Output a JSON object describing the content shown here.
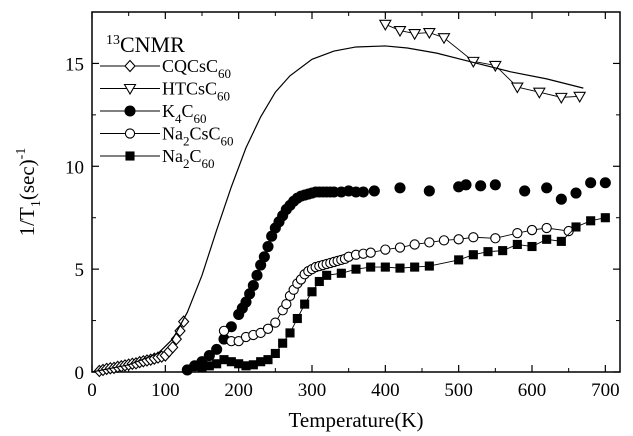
{
  "chart_data": {
    "type": "scatter",
    "title": "",
    "annotation": {
      "sup": "13",
      "main": "CNMR"
    },
    "xlabel": "Temperature(K)",
    "ylabel": {
      "main": "1/T",
      "sub": "1",
      "paren": "(sec)",
      "sup": "-1"
    },
    "xlim": [
      0,
      720
    ],
    "ylim": [
      0,
      17.5
    ],
    "xticks": [
      0,
      100,
      200,
      300,
      400,
      500,
      600,
      700
    ],
    "yticks": [
      0,
      5,
      10,
      15
    ],
    "grid": false,
    "legend_position": "top-left",
    "series": [
      {
        "name": "CQCsC60",
        "label_parts": [
          [
            "CQCsC",
            ""
          ],
          [
            "60",
            "sub"
          ]
        ],
        "marker": "diamond-open",
        "connect": true,
        "x": [
          10,
          15,
          20,
          25,
          30,
          35,
          40,
          45,
          50,
          55,
          60,
          65,
          70,
          75,
          80,
          85,
          90,
          95,
          100,
          105,
          110,
          115,
          120,
          125
        ],
        "y": [
          0.05,
          0.1,
          0.15,
          0.18,
          0.2,
          0.25,
          0.28,
          0.32,
          0.36,
          0.4,
          0.42,
          0.48,
          0.52,
          0.56,
          0.6,
          0.65,
          0.7,
          0.75,
          0.8,
          1.0,
          1.2,
          1.6,
          2.0,
          2.45
        ]
      },
      {
        "name": "HTCsC60",
        "label_parts": [
          [
            "HTCsC",
            ""
          ],
          [
            "60",
            "sub"
          ]
        ],
        "marker": "triangle-down-open",
        "connect": true,
        "x": [
          400,
          420,
          440,
          460,
          480,
          520,
          550,
          580,
          610,
          640,
          665
        ],
        "y": [
          16.9,
          16.6,
          16.45,
          16.5,
          16.25,
          15.1,
          14.9,
          13.85,
          13.6,
          13.35,
          13.4
        ]
      },
      {
        "name": "K4C60",
        "label_parts": [
          [
            "K",
            ""
          ],
          [
            "4",
            "sub"
          ],
          [
            "C",
            ""
          ],
          [
            "60",
            "sub"
          ]
        ],
        "marker": "circle-filled",
        "connect": false,
        "x": [
          130,
          140,
          150,
          160,
          170,
          180,
          190,
          200,
          205,
          210,
          215,
          220,
          225,
          230,
          235,
          240,
          245,
          250,
          255,
          260,
          265,
          270,
          275,
          280,
          285,
          290,
          295,
          300,
          305,
          310,
          315,
          320,
          325,
          330,
          340,
          350,
          360,
          370,
          385,
          420,
          460,
          500,
          510,
          530,
          550,
          590,
          620,
          640,
          660,
          680,
          700
        ],
        "y": [
          0.1,
          0.3,
          0.5,
          0.8,
          1.1,
          1.6,
          2.2,
          2.8,
          3.1,
          3.4,
          3.8,
          4.2,
          4.7,
          5.2,
          5.6,
          6.1,
          6.6,
          7.0,
          7.3,
          7.6,
          7.9,
          8.1,
          8.3,
          8.45,
          8.55,
          8.6,
          8.65,
          8.7,
          8.75,
          8.75,
          8.75,
          8.75,
          8.75,
          8.75,
          8.75,
          8.8,
          8.75,
          8.75,
          8.8,
          8.95,
          8.8,
          9.0,
          9.1,
          9.05,
          9.1,
          8.8,
          8.95,
          8.4,
          8.7,
          9.2,
          9.2
        ]
      },
      {
        "name": "Na2CsC60",
        "label_parts": [
          [
            "Na",
            ""
          ],
          [
            "2",
            "sub"
          ],
          [
            "CsC",
            ""
          ],
          [
            "60",
            "sub"
          ]
        ],
        "marker": "circle-open",
        "connect": true,
        "x": [
          180,
          190,
          200,
          210,
          220,
          230,
          240,
          250,
          260,
          265,
          270,
          275,
          280,
          285,
          290,
          295,
          300,
          305,
          310,
          315,
          320,
          325,
          330,
          335,
          340,
          345,
          350,
          360,
          370,
          380,
          400,
          420,
          440,
          460,
          480,
          500,
          520,
          550,
          580,
          600,
          620,
          650
        ],
        "y": [
          2.0,
          1.5,
          1.5,
          1.7,
          1.8,
          1.9,
          2.1,
          2.4,
          3.0,
          3.3,
          3.7,
          4.0,
          4.3,
          4.5,
          4.75,
          4.9,
          5.0,
          5.1,
          5.15,
          5.2,
          5.25,
          5.3,
          5.35,
          5.4,
          5.45,
          5.5,
          5.6,
          5.7,
          5.75,
          5.8,
          5.95,
          6.05,
          6.2,
          6.3,
          6.4,
          6.45,
          6.55,
          6.5,
          6.75,
          6.9,
          7.0,
          6.85
        ]
      },
      {
        "name": "Na2C60",
        "label_parts": [
          [
            "Na",
            ""
          ],
          [
            "2",
            "sub"
          ],
          [
            "C",
            ""
          ],
          [
            "60",
            "sub"
          ]
        ],
        "marker": "square-filled",
        "connect": true,
        "x": [
          150,
          160,
          170,
          180,
          190,
          200,
          210,
          220,
          230,
          240,
          250,
          260,
          270,
          280,
          290,
          300,
          310,
          320,
          340,
          360,
          380,
          400,
          420,
          440,
          460,
          500,
          520,
          540,
          560,
          580,
          600,
          620,
          640,
          660,
          680,
          700
        ],
        "y": [
          0.2,
          0.3,
          0.4,
          0.6,
          0.5,
          0.4,
          0.3,
          0.35,
          0.5,
          0.6,
          0.9,
          1.4,
          1.9,
          2.6,
          3.3,
          3.9,
          4.4,
          4.7,
          4.8,
          5.0,
          5.1,
          5.1,
          5.05,
          5.1,
          5.15,
          5.45,
          5.7,
          5.85,
          5.9,
          6.2,
          6.1,
          6.45,
          6.35,
          7.05,
          7.35,
          7.5
        ]
      },
      {
        "name": "fit",
        "marker": "none",
        "connect": true,
        "x": [
          0,
          50,
          90,
          110,
          130,
          150,
          170,
          190,
          210,
          230,
          250,
          270,
          300,
          330,
          360,
          400,
          430,
          470,
          520,
          570,
          620,
          670
        ],
        "y": [
          0.0,
          0.35,
          0.9,
          1.6,
          2.9,
          4.7,
          6.9,
          9.0,
          10.9,
          12.4,
          13.6,
          14.4,
          15.2,
          15.6,
          15.8,
          15.85,
          15.75,
          15.5,
          15.05,
          14.6,
          14.25,
          13.8
        ]
      }
    ]
  }
}
